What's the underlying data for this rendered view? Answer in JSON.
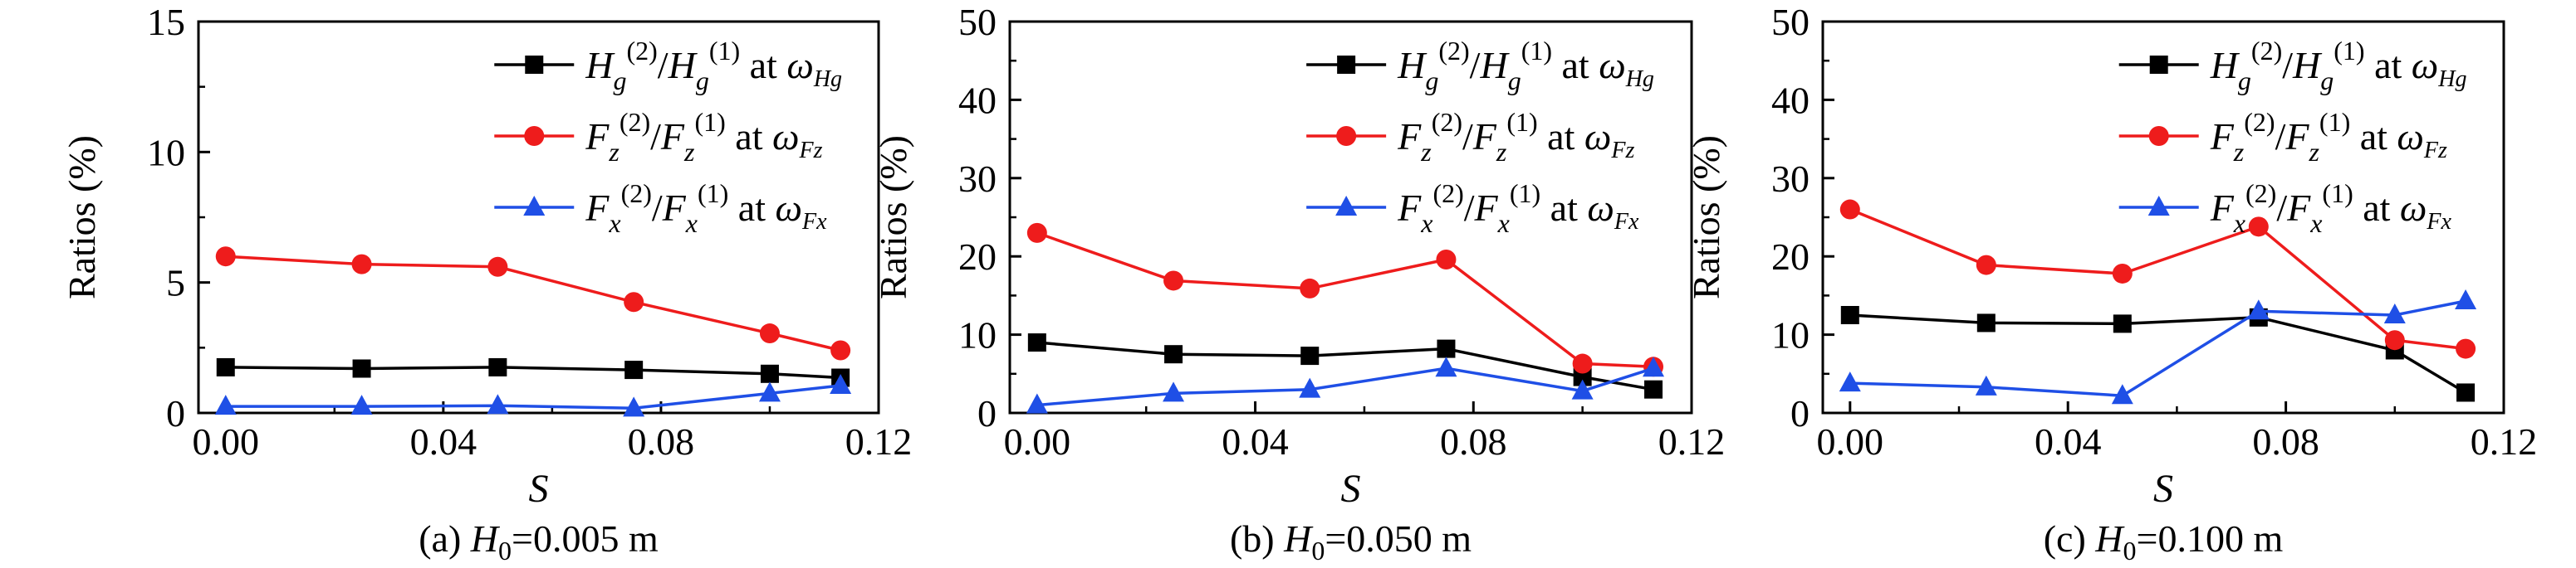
{
  "legend_text": {
    "hg": {
      "base": "H",
      "sub": "g",
      "sup1": "(2)",
      "slash": "/",
      "base2": "H",
      "sub2": "g",
      "sup2": "(1)",
      "at": " at ",
      "omega": "ω",
      "wsub": "Hg"
    },
    "fz": {
      "base": "F",
      "sub": "z",
      "sup1": "(2)",
      "slash": "/",
      "base2": "F",
      "sub2": "z",
      "sup2": "(1)",
      "at": " at ",
      "omega": "ω",
      "wsub": "Fz"
    },
    "fx": {
      "base": "F",
      "sub": "x",
      "sup1": "(2)",
      "slash": "/",
      "base2": "F",
      "sub2": "x",
      "sup2": "(1)",
      "at": " at ",
      "omega": "ω",
      "wsub": "Fx"
    }
  },
  "colors": {
    "hg": "#000000",
    "fz": "#ee1c1c",
    "fx": "#1f4fe6"
  },
  "chart_data": [
    {
      "type": "line",
      "caption": {
        "prefix": "(a) ",
        "var": "H",
        "sub": "0",
        "rest": "=0.005 m"
      },
      "xlabel": "S",
      "ylabel": "Ratios (%)",
      "xlim": [
        -0.005,
        0.12
      ],
      "ylim": [
        0,
        15
      ],
      "xticks": [
        0.0,
        0.04,
        0.08,
        0.12
      ],
      "xtick_labels": [
        "0.00",
        "0.04",
        "0.08",
        "0.12"
      ],
      "yticks": [
        0,
        5,
        10,
        15
      ],
      "ytick_labels": [
        "0",
        "5",
        "10",
        "15"
      ],
      "legend_position": "top-right",
      "series": [
        {
          "key": "hg",
          "marker": "square",
          "x": [
            0.0,
            0.025,
            0.05,
            0.075,
            0.1,
            0.113
          ],
          "values": [
            1.75,
            1.7,
            1.75,
            1.65,
            1.5,
            1.35
          ]
        },
        {
          "key": "fz",
          "marker": "circle",
          "x": [
            0.0,
            0.025,
            0.05,
            0.075,
            0.1,
            0.113
          ],
          "values": [
            6.0,
            5.7,
            5.6,
            4.25,
            3.05,
            2.4
          ]
        },
        {
          "key": "fx",
          "marker": "triangle",
          "x": [
            0.0,
            0.025,
            0.05,
            0.075,
            0.1,
            0.113
          ],
          "values": [
            0.25,
            0.25,
            0.28,
            0.18,
            0.75,
            1.05
          ]
        }
      ]
    },
    {
      "type": "line",
      "caption": {
        "prefix": "(b) ",
        "var": "H",
        "sub": "0",
        "rest": "=0.050 m"
      },
      "xlabel": "S",
      "ylabel": "Ratios (%)",
      "xlim": [
        -0.005,
        0.12
      ],
      "ylim": [
        0,
        50
      ],
      "xticks": [
        0.0,
        0.04,
        0.08,
        0.12
      ],
      "xtick_labels": [
        "0.00",
        "0.04",
        "0.08",
        "0.12"
      ],
      "yticks": [
        0,
        10,
        20,
        30,
        40,
        50
      ],
      "ytick_labels": [
        "0",
        "10",
        "20",
        "30",
        "40",
        "50"
      ],
      "legend_position": "top-right",
      "series": [
        {
          "key": "hg",
          "marker": "square",
          "x": [
            0.0,
            0.025,
            0.05,
            0.075,
            0.1,
            0.113
          ],
          "values": [
            9.0,
            7.5,
            7.3,
            8.2,
            4.6,
            3.0
          ]
        },
        {
          "key": "fz",
          "marker": "circle",
          "x": [
            0.0,
            0.025,
            0.05,
            0.075,
            0.1,
            0.113
          ],
          "values": [
            23.0,
            16.9,
            15.9,
            19.6,
            6.3,
            5.9
          ]
        },
        {
          "key": "fx",
          "marker": "triangle",
          "x": [
            0.0,
            0.025,
            0.05,
            0.075,
            0.1,
            0.113
          ],
          "values": [
            1.0,
            2.5,
            3.0,
            5.7,
            2.8,
            5.7
          ]
        }
      ]
    },
    {
      "type": "line",
      "caption": {
        "prefix": "(c) ",
        "var": "H",
        "sub": "0",
        "rest": "=0.100 m"
      },
      "xlabel": "S",
      "ylabel": "Ratios (%)",
      "xlim": [
        -0.005,
        0.12
      ],
      "ylim": [
        0,
        50
      ],
      "xticks": [
        0.0,
        0.04,
        0.08,
        0.12
      ],
      "xtick_labels": [
        "0.00",
        "0.04",
        "0.08",
        "0.12"
      ],
      "yticks": [
        0,
        10,
        20,
        30,
        40,
        50
      ],
      "ytick_labels": [
        "0",
        "10",
        "20",
        "30",
        "40",
        "50"
      ],
      "legend_position": "top-right",
      "series": [
        {
          "key": "hg",
          "marker": "square",
          "x": [
            0.0,
            0.025,
            0.05,
            0.075,
            0.1,
            0.113
          ],
          "values": [
            12.5,
            11.5,
            11.4,
            12.2,
            8.0,
            2.6
          ]
        },
        {
          "key": "fz",
          "marker": "circle",
          "x": [
            0.0,
            0.025,
            0.05,
            0.075,
            0.1,
            0.113
          ],
          "values": [
            26.0,
            18.9,
            17.8,
            23.8,
            9.3,
            8.2
          ]
        },
        {
          "key": "fx",
          "marker": "triangle",
          "x": [
            0.0,
            0.025,
            0.05,
            0.075,
            0.1,
            0.113
          ],
          "values": [
            3.8,
            3.3,
            2.2,
            13.0,
            12.5,
            14.3
          ]
        }
      ]
    }
  ]
}
